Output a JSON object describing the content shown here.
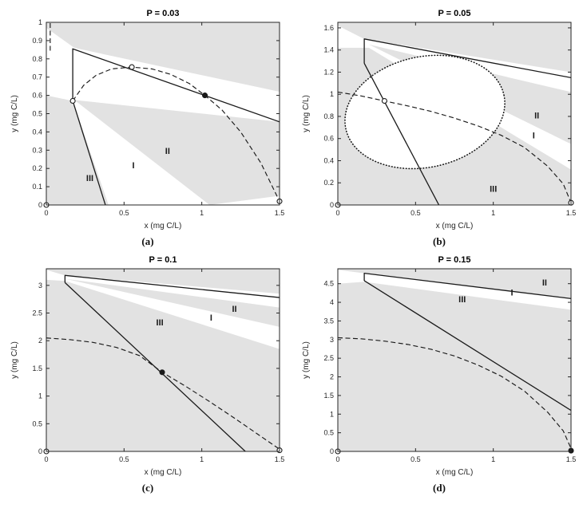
{
  "figure": {
    "background": "#ffffff"
  },
  "colors": {
    "shade": "#e2e2e2",
    "line": "#1a1a1a",
    "box": "#262626",
    "marker_open_fill": "#ffffff"
  },
  "chart_data": [
    {
      "id": "a",
      "caption": "(a)",
      "type": "line",
      "title": "P = 0.03",
      "xlabel": "x (mg C/L)",
      "ylabel": "y (mg C/L)",
      "xlim": [
        0,
        1.5
      ],
      "ylim": [
        0,
        1
      ],
      "xticks": [
        0,
        0.5,
        1,
        1.5
      ],
      "yticks": [
        0,
        0.1,
        0.2,
        0.3,
        0.4,
        0.5,
        0.6,
        0.7,
        0.8,
        0.9,
        1
      ],
      "grid": false,
      "shaded_regions": [
        [
          [
            0,
            1
          ],
          [
            1.5,
            1
          ],
          [
            1.5,
            0.62
          ],
          [
            0.18,
            0.86
          ],
          [
            0,
            0.97
          ]
        ],
        [
          [
            0.18,
            0.575
          ],
          [
            1.5,
            0.455
          ],
          [
            1.5,
            0.05
          ],
          [
            1.05,
            0
          ]
        ],
        [
          [
            0,
            0.6
          ],
          [
            0.17,
            0.57
          ],
          [
            0.4,
            0
          ],
          [
            0,
            0
          ]
        ]
      ],
      "limit_cycle": null,
      "curves": [
        {
          "name": "predator-nullcline-solid",
          "style": "solid",
          "points": [
            [
              0.17,
              0.57
            ],
            [
              0.17,
              0.855
            ],
            [
              1.5,
              0.455
            ]
          ]
        },
        {
          "name": "boundary-solid",
          "style": "solid",
          "points": [
            [
              0.17,
              0.57
            ],
            [
              0.38,
              0
            ]
          ]
        },
        {
          "name": "prey-nullcline-dashed",
          "style": "dashed",
          "points": [
            [
              0.17,
              0.57
            ],
            [
              0.24,
              0.655
            ],
            [
              0.32,
              0.71
            ],
            [
              0.42,
              0.745
            ],
            [
              0.55,
              0.755
            ],
            [
              0.68,
              0.745
            ],
            [
              0.8,
              0.715
            ],
            [
              0.92,
              0.665
            ],
            [
              1.02,
              0.6
            ],
            [
              1.13,
              0.52
            ],
            [
              1.25,
              0.4
            ],
            [
              1.38,
              0.23
            ],
            [
              1.5,
              0.02
            ]
          ]
        },
        {
          "name": "left-edge-dashed",
          "style": "dashed",
          "points": [
            [
              0.025,
              0.845
            ],
            [
              0.025,
              1.0
            ]
          ]
        }
      ],
      "equilibrium_points": [
        {
          "x": 0,
          "y": 0,
          "type": "open"
        },
        {
          "x": 0.17,
          "y": 0.57,
          "type": "open"
        },
        {
          "x": 0.55,
          "y": 0.755,
          "type": "open"
        },
        {
          "x": 1.5,
          "y": 0.02,
          "type": "open"
        },
        {
          "x": 1.02,
          "y": 0.6,
          "type": "filled"
        }
      ],
      "region_labels": [
        {
          "text": "III",
          "x": 0.28,
          "y": 0.13
        },
        {
          "text": "I",
          "x": 0.56,
          "y": 0.2
        },
        {
          "text": "II",
          "x": 0.78,
          "y": 0.28
        }
      ]
    },
    {
      "id": "b",
      "caption": "(b)",
      "type": "line",
      "title": "P = 0.05",
      "xlabel": "x (mg C/L)",
      "ylabel": "y (mg C/L)",
      "xlim": [
        0,
        1.5
      ],
      "ylim": [
        0,
        1.65
      ],
      "xticks": [
        0,
        0.5,
        1,
        1.5
      ],
      "yticks": [
        0,
        0.2,
        0.4,
        0.6,
        0.8,
        1,
        1.2,
        1.4,
        1.6
      ],
      "grid": false,
      "shaded_regions": [
        [
          [
            0,
            1.65
          ],
          [
            1.5,
            1.65
          ],
          [
            1.5,
            1.2
          ],
          [
            0.17,
            1.5
          ],
          [
            0,
            1.62
          ]
        ],
        [
          [
            0.2,
            1.45
          ],
          [
            1.5,
            1.02
          ],
          [
            1.5,
            0.55
          ]
        ],
        [
          [
            0,
            1.42
          ],
          [
            0.2,
            1.42
          ],
          [
            1.5,
            0.32
          ],
          [
            1.5,
            0
          ],
          [
            0,
            0
          ]
        ]
      ],
      "limit_cycle": {
        "cx": 0.56,
        "cy": 0.84,
        "rx": 0.52,
        "ry": 0.5,
        "rotate": -12
      },
      "curves": [
        {
          "name": "predator-nullcline-solid",
          "style": "solid",
          "points": [
            [
              0.17,
              1.28
            ],
            [
              0.17,
              1.5
            ],
            [
              1.5,
              1.15
            ]
          ]
        },
        {
          "name": "boundary-solid",
          "style": "solid",
          "points": [
            [
              0.17,
              1.28
            ],
            [
              0.65,
              0
            ]
          ]
        },
        {
          "name": "prey-nullcline-dashed",
          "style": "dashed",
          "points": [
            [
              0,
              1.02
            ],
            [
              0.15,
              0.985
            ],
            [
              0.3,
              0.94
            ],
            [
              0.45,
              0.895
            ],
            [
              0.6,
              0.845
            ],
            [
              0.75,
              0.785
            ],
            [
              0.9,
              0.715
            ],
            [
              1.05,
              0.63
            ],
            [
              1.2,
              0.52
            ],
            [
              1.35,
              0.35
            ],
            [
              1.45,
              0.19
            ],
            [
              1.5,
              0.02
            ]
          ]
        }
      ],
      "equilibrium_points": [
        {
          "x": 0,
          "y": 0,
          "type": "open"
        },
        {
          "x": 0.3,
          "y": 0.94,
          "type": "open"
        },
        {
          "x": 1.5,
          "y": 0.02,
          "type": "open"
        }
      ],
      "region_labels": [
        {
          "text": "II",
          "x": 1.28,
          "y": 0.78
        },
        {
          "text": "I",
          "x": 1.26,
          "y": 0.6
        },
        {
          "text": "III",
          "x": 1.0,
          "y": 0.12
        }
      ]
    },
    {
      "id": "c",
      "caption": "(c)",
      "type": "line",
      "title": "P = 0.1",
      "xlabel": "x (mg C/L)",
      "ylabel": "y (mg C/L)",
      "xlim": [
        0,
        1.5
      ],
      "ylim": [
        0,
        3.3
      ],
      "xticks": [
        0,
        0.5,
        1,
        1.5
      ],
      "yticks": [
        0,
        0.5,
        1,
        1.5,
        2,
        2.5,
        3
      ],
      "grid": false,
      "shaded_regions": [
        [
          [
            0,
            3.3
          ],
          [
            1.5,
            3.3
          ],
          [
            1.5,
            2.85
          ],
          [
            0.12,
            3.18
          ],
          [
            0,
            3.28
          ]
        ],
        [
          [
            0.12,
            3.12
          ],
          [
            1.5,
            2.6
          ],
          [
            1.5,
            2.25
          ]
        ],
        [
          [
            0,
            3.1
          ],
          [
            0.12,
            3.08
          ],
          [
            1.5,
            1.85
          ],
          [
            1.5,
            0
          ],
          [
            0,
            0
          ]
        ]
      ],
      "limit_cycle": null,
      "curves": [
        {
          "name": "predator-nullcline-solid",
          "style": "solid",
          "points": [
            [
              0.12,
              3.05
            ],
            [
              0.12,
              3.18
            ],
            [
              1.5,
              2.78
            ]
          ]
        },
        {
          "name": "boundary-solid",
          "style": "solid",
          "points": [
            [
              0.12,
              3.05
            ],
            [
              1.28,
              0
            ]
          ]
        },
        {
          "name": "prey-nullcline-dashed",
          "style": "dashed",
          "points": [
            [
              0,
              2.05
            ],
            [
              0.15,
              2.02
            ],
            [
              0.3,
              1.97
            ],
            [
              0.45,
              1.88
            ],
            [
              0.6,
              1.73
            ],
            [
              0.745,
              1.43
            ],
            [
              0.9,
              1.17
            ],
            [
              1.05,
              0.9
            ],
            [
              1.2,
              0.62
            ],
            [
              1.35,
              0.33
            ],
            [
              1.5,
              0.04
            ]
          ]
        }
      ],
      "equilibrium_points": [
        {
          "x": 0,
          "y": 0,
          "type": "open"
        },
        {
          "x": 1.5,
          "y": 0.02,
          "type": "open"
        },
        {
          "x": 0.745,
          "y": 1.43,
          "type": "filled"
        }
      ],
      "region_labels": [
        {
          "text": "III",
          "x": 0.73,
          "y": 2.28
        },
        {
          "text": "I",
          "x": 1.06,
          "y": 2.36
        },
        {
          "text": "II",
          "x": 1.21,
          "y": 2.52
        }
      ]
    },
    {
      "id": "d",
      "caption": "(d)",
      "type": "line",
      "title": "P = 0.15",
      "xlabel": "x (mg C/L)",
      "ylabel": "y (mg C/L)",
      "xlim": [
        0,
        1.5
      ],
      "ylim": [
        0,
        4.9
      ],
      "xticks": [
        0,
        0.5,
        1,
        1.5
      ],
      "yticks": [
        0,
        0.5,
        1,
        1.5,
        2,
        2.5,
        3,
        3.5,
        4,
        4.5
      ],
      "grid": false,
      "shaded_regions": [
        [
          [
            0,
            4.9
          ],
          [
            1.5,
            4.9
          ],
          [
            1.5,
            4.1
          ],
          [
            0.17,
            4.78
          ],
          [
            0,
            4.87
          ]
        ],
        [
          [
            0,
            4.5
          ],
          [
            0.17,
            4.55
          ],
          [
            1.5,
            3.8
          ],
          [
            1.5,
            0
          ],
          [
            0,
            0
          ]
        ]
      ],
      "limit_cycle": null,
      "curves": [
        {
          "name": "predator-nullcline-solid",
          "style": "solid",
          "points": [
            [
              0.17,
              4.58
            ],
            [
              0.17,
              4.78
            ],
            [
              1.5,
              4.1
            ]
          ]
        },
        {
          "name": "boundary-solid",
          "style": "solid",
          "points": [
            [
              0.17,
              4.58
            ],
            [
              1.5,
              1.1
            ]
          ]
        },
        {
          "name": "prey-nullcline-dashed",
          "style": "dashed",
          "points": [
            [
              0,
              3.05
            ],
            [
              0.15,
              3.02
            ],
            [
              0.3,
              2.96
            ],
            [
              0.45,
              2.87
            ],
            [
              0.6,
              2.74
            ],
            [
              0.75,
              2.56
            ],
            [
              0.9,
              2.32
            ],
            [
              1.05,
              2.02
            ],
            [
              1.2,
              1.62
            ],
            [
              1.35,
              1.05
            ],
            [
              1.45,
              0.55
            ],
            [
              1.5,
              0.08
            ]
          ]
        }
      ],
      "equilibrium_points": [
        {
          "x": 0,
          "y": 0,
          "type": "open"
        },
        {
          "x": 1.5,
          "y": 0.02,
          "type": "filled"
        }
      ],
      "region_labels": [
        {
          "text": "II",
          "x": 1.33,
          "y": 4.45
        },
        {
          "text": "I",
          "x": 1.12,
          "y": 4.18
        },
        {
          "text": "III",
          "x": 0.8,
          "y": 4.0
        }
      ]
    }
  ]
}
